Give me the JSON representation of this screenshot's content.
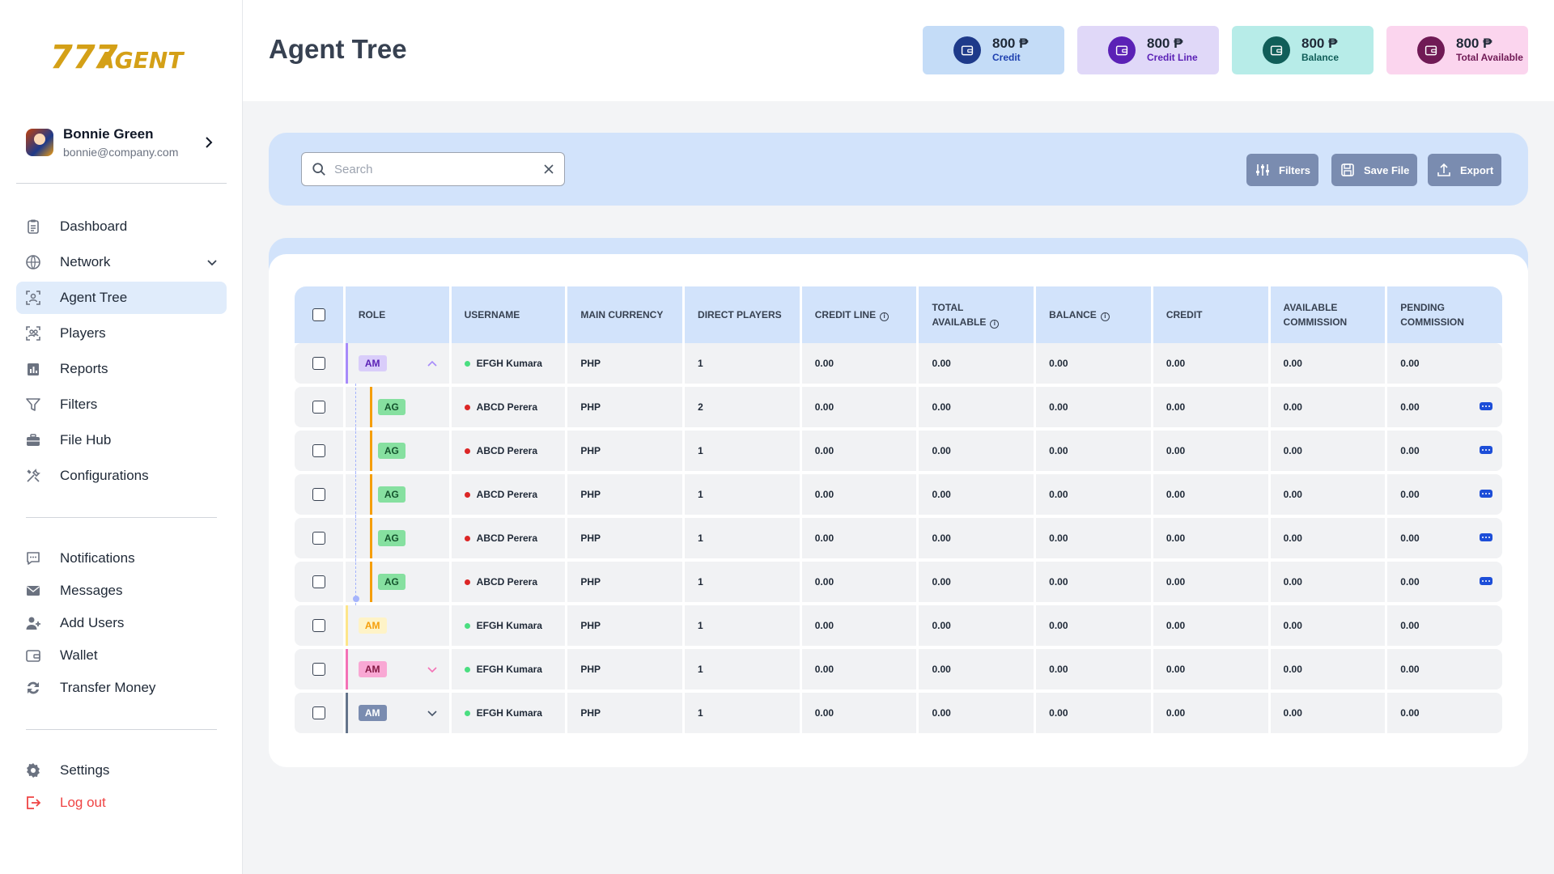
{
  "brand": {
    "logo_text": "777 AGENT",
    "accent": "#d4a017"
  },
  "profile": {
    "name": "Bonnie Green",
    "email": "bonnie@company.com"
  },
  "nav_primary": [
    {
      "label": "Dashboard",
      "icon": "clipboard-icon",
      "active": false
    },
    {
      "label": "Network",
      "icon": "globe-icon",
      "active": false,
      "has_chevron": true
    },
    {
      "label": "Agent Tree",
      "icon": "agent-tree-icon",
      "active": true
    },
    {
      "label": "Players",
      "icon": "players-icon",
      "active": false
    },
    {
      "label": "Reports",
      "icon": "reports-icon",
      "active": false
    },
    {
      "label": "Filters",
      "icon": "filter-icon",
      "active": false
    },
    {
      "label": "File Hub",
      "icon": "briefcase-icon",
      "active": false
    },
    {
      "label": "Configurations",
      "icon": "tools-icon",
      "active": false
    }
  ],
  "nav_secondary": [
    {
      "label": "Notifications",
      "icon": "chat-bubble-icon"
    },
    {
      "label": "Messages",
      "icon": "envelope-icon"
    },
    {
      "label": "Add Users",
      "icon": "user-plus-icon"
    },
    {
      "label": "Wallet",
      "icon": "wallet-icon"
    },
    {
      "label": "Transfer Money",
      "icon": "transfer-icon"
    }
  ],
  "nav_footer": [
    {
      "label": "Settings",
      "icon": "gear-icon"
    },
    {
      "label": "Log out",
      "icon": "logout-icon"
    }
  ],
  "header": {
    "title": "Agent Tree"
  },
  "stats": [
    {
      "value": "800 ₱",
      "label": "Credit",
      "bg": "#c4dcf7",
      "icon_bg": "#1e3a8a",
      "label_color": "#1e40af"
    },
    {
      "value": "800 ₱",
      "label": "Credit Line",
      "bg": "#e0d8f8",
      "icon_bg": "#5b21b6",
      "label_color": "#5b21b6"
    },
    {
      "value": "800 ₱",
      "label": "Balance",
      "bg": "#b7ece8",
      "icon_bg": "#115e59",
      "label_color": "#115e59"
    },
    {
      "value": "800 ₱",
      "label": "Total Available",
      "bg": "#fbd5ee",
      "icon_bg": "#701a55",
      "label_color": "#701a55"
    }
  ],
  "toolbar": {
    "search_placeholder": "Search",
    "filters_label": "Filters",
    "save_label": "Save File",
    "export_label": "Export"
  },
  "table": {
    "columns": [
      "ROLE",
      "USERNAME",
      "MAIN CURRENCY",
      "DIRECT PLAYERS",
      "CREDIT LINE",
      "TOTAL AVAILABLE",
      "BALANCE",
      "CREDIT",
      "AVAILABLE COMMISSION",
      "PENDING COMMISSION"
    ],
    "column_lines": [
      [
        "ROLE"
      ],
      [
        "USERNAME"
      ],
      [
        "MAIN CURRENCY"
      ],
      [
        "DIRECT PLAYERS"
      ],
      [
        "CREDIT LINE"
      ],
      [
        "TOTAL",
        "AVAILABLE"
      ],
      [
        "BALANCE"
      ],
      [
        "CREDIT"
      ],
      [
        "AVAILABLE",
        "COMMISSION"
      ],
      [
        "PENDING",
        "COMMISSION"
      ]
    ],
    "rows": [
      {
        "role": "AM",
        "role_style": "purple",
        "expand": "up",
        "status": "green",
        "username": "EFGH Kumara",
        "currency": "PHP",
        "direct_players": "1",
        "credit_line": "0.00",
        "total_available": "0.00",
        "balance": "0.00",
        "credit": "0.00",
        "available_commission": "0.00",
        "pending_commission": "0.00",
        "child": false
      },
      {
        "role": "AG",
        "role_style": "green",
        "expand": "",
        "status": "red",
        "username": "ABCD Perera",
        "currency": "PHP",
        "direct_players": "2",
        "credit_line": "0.00",
        "total_available": "0.00",
        "balance": "0.00",
        "credit": "0.00",
        "available_commission": "0.00",
        "pending_commission": "0.00",
        "child": true
      },
      {
        "role": "AG",
        "role_style": "green",
        "expand": "",
        "status": "red",
        "username": "ABCD Perera",
        "currency": "PHP",
        "direct_players": "1",
        "credit_line": "0.00",
        "total_available": "0.00",
        "balance": "0.00",
        "credit": "0.00",
        "available_commission": "0.00",
        "pending_commission": "0.00",
        "child": true
      },
      {
        "role": "AG",
        "role_style": "green",
        "expand": "",
        "status": "red",
        "username": "ABCD Perera",
        "currency": "PHP",
        "direct_players": "1",
        "credit_line": "0.00",
        "total_available": "0.00",
        "balance": "0.00",
        "credit": "0.00",
        "available_commission": "0.00",
        "pending_commission": "0.00",
        "child": true
      },
      {
        "role": "AG",
        "role_style": "green",
        "expand": "",
        "status": "red",
        "username": "ABCD Perera",
        "currency": "PHP",
        "direct_players": "1",
        "credit_line": "0.00",
        "total_available": "0.00",
        "balance": "0.00",
        "credit": "0.00",
        "available_commission": "0.00",
        "pending_commission": "0.00",
        "child": true
      },
      {
        "role": "AG",
        "role_style": "green",
        "expand": "",
        "status": "red",
        "username": "ABCD Perera",
        "currency": "PHP",
        "direct_players": "1",
        "credit_line": "0.00",
        "total_available": "0.00",
        "balance": "0.00",
        "credit": "0.00",
        "available_commission": "0.00",
        "pending_commission": "0.00",
        "child": true
      },
      {
        "role": "AM",
        "role_style": "yellow",
        "expand": "",
        "status": "green",
        "username": "EFGH Kumara",
        "currency": "PHP",
        "direct_players": "1",
        "credit_line": "0.00",
        "total_available": "0.00",
        "balance": "0.00",
        "credit": "0.00",
        "available_commission": "0.00",
        "pending_commission": "0.00",
        "child": false
      },
      {
        "role": "AM",
        "role_style": "pink",
        "expand": "down",
        "status": "green",
        "username": "EFGH Kumara",
        "currency": "PHP",
        "direct_players": "1",
        "credit_line": "0.00",
        "total_available": "0.00",
        "balance": "0.00",
        "credit": "0.00",
        "available_commission": "0.00",
        "pending_commission": "0.00",
        "child": false
      },
      {
        "role": "AM",
        "role_style": "slate",
        "expand": "down",
        "status": "green",
        "username": "EFGH Kumara",
        "currency": "PHP",
        "direct_players": "1",
        "credit_line": "0.00",
        "total_available": "0.00",
        "balance": "0.00",
        "credit": "0.00",
        "available_commission": "0.00",
        "pending_commission": "0.00",
        "child": false
      }
    ]
  },
  "colors": {
    "active_nav": "#e0ecfb",
    "panel_blue": "#d2e3fb",
    "button": "#7a8cb0",
    "danger": "#ef4444"
  }
}
